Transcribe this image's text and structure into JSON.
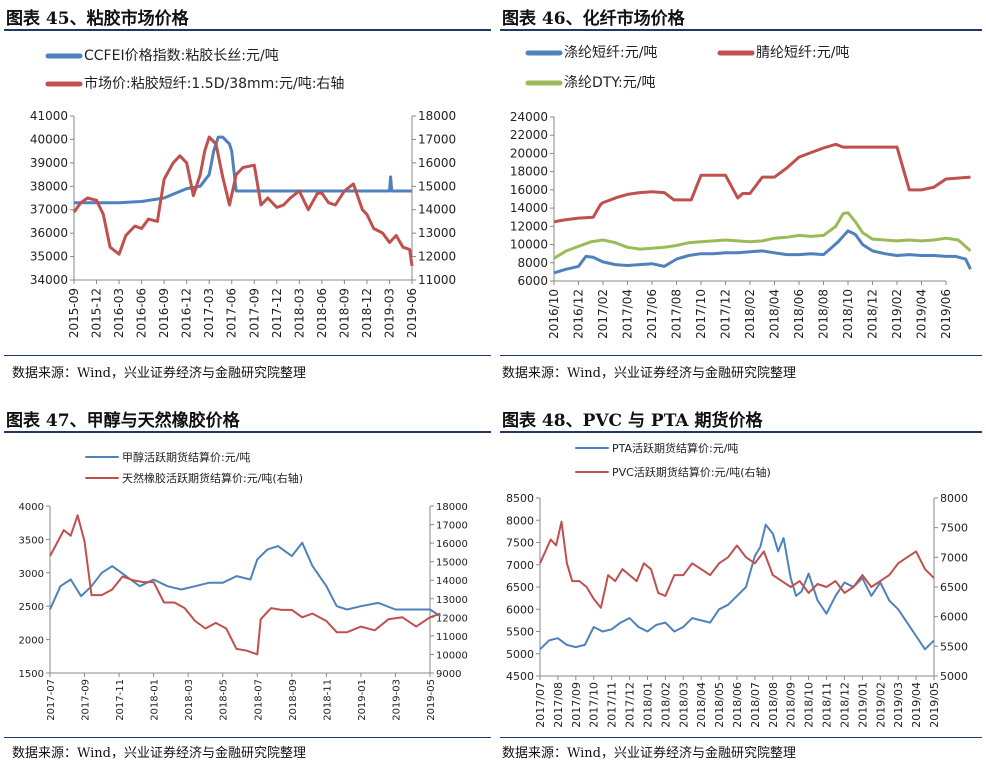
{
  "panels": [
    {
      "title": "图表 45、粘胶市场价格",
      "source": "数据来源：Wind，兴业证券经济与金融研究院整理"
    },
    {
      "title": "图表 46、化纤市场价格",
      "source": "数据来源：Wind，兴业证券经济与金融研究院整理"
    },
    {
      "title": "图表 47、甲醇与天然橡胶价格",
      "source": "数据来源：Wind，兴业证券经济与金融研究院整理"
    },
    {
      "title": "图表 48、PVC 与 PTA 期货价格",
      "source": "数据来源：Wind，兴业证券经济与金融研究院整理"
    }
  ],
  "chart_data": [
    {
      "type": "line",
      "legend_position": "top",
      "grid": false,
      "x_labels": [
        "2015-09",
        "2015-12",
        "2016-03",
        "2016-06",
        "2016-09",
        "2016-12",
        "2017-03",
        "2017-06",
        "2017-09",
        "2017-12",
        "2018-03",
        "2018-06",
        "2018-09",
        "2018-12",
        "2019-03",
        "2019-06"
      ],
      "ylim_left": [
        34000,
        41000
      ],
      "yticks_left": [
        34000,
        35000,
        36000,
        37000,
        38000,
        39000,
        40000,
        41000
      ],
      "ylim_right": [
        11000,
        18000
      ],
      "yticks_right": [
        11000,
        12000,
        13000,
        14000,
        15000,
        16000,
        17000,
        18000
      ],
      "series": [
        {
          "name": "CCFEI价格指数:粘胶长丝:元/吨",
          "color": "#4f81bd",
          "axis": "left",
          "x": [
            0,
            0.5,
            1,
            2,
            3,
            4,
            4.5,
            5,
            5.3,
            5.6,
            6,
            6.2,
            6.4,
            6.6,
            6.9,
            7.0,
            7.2,
            7.4,
            8,
            9,
            10,
            11,
            12,
            13,
            14.0,
            14.05,
            14.1,
            14.3,
            15
          ],
          "y": [
            37300,
            37300,
            37300,
            37300,
            37350,
            37500,
            37700,
            37900,
            37950,
            38000,
            38500,
            39500,
            40100,
            40100,
            39800,
            39500,
            37800,
            37800,
            37800,
            37800,
            37800,
            37800,
            37800,
            37800,
            37800,
            38400,
            37800,
            37800,
            37800
          ]
        },
        {
          "name": "市场价:粘胶短纤:1.5D/38mm:元/吨:右轴",
          "color": "#c0504d",
          "axis": "right",
          "x": [
            0,
            0.3,
            0.6,
            1,
            1.3,
            1.6,
            2,
            2.3,
            2.7,
            3,
            3.3,
            3.7,
            4,
            4.4,
            4.7,
            5,
            5.3,
            5.6,
            5.8,
            6,
            6.3,
            6.6,
            6.9,
            7.2,
            7.5,
            8,
            8.3,
            8.6,
            9,
            9.3,
            9.6,
            10,
            10.4,
            10.8,
            11,
            11.3,
            11.6,
            12,
            12.4,
            12.8,
            13,
            13.3,
            13.7,
            14,
            14.3,
            14.6,
            14.9,
            15
          ],
          "y": [
            13900,
            14300,
            14500,
            14400,
            13800,
            12400,
            12100,
            12900,
            13300,
            13200,
            13600,
            13500,
            15300,
            16000,
            16300,
            16000,
            14600,
            15500,
            16500,
            17100,
            16800,
            15400,
            14200,
            15500,
            15800,
            15900,
            14200,
            14500,
            14100,
            14200,
            14500,
            14800,
            14000,
            14700,
            14700,
            14300,
            14200,
            14800,
            15100,
            14000,
            13800,
            13200,
            13000,
            12600,
            12900,
            12400,
            12300,
            11600
          ]
        }
      ]
    },
    {
      "type": "line",
      "legend_position": "top",
      "grid": false,
      "x_labels": [
        "2016/10",
        "2016/12",
        "2017/02",
        "2017/04",
        "2017/06",
        "2017/08",
        "2017/10",
        "2017/12",
        "2018/02",
        "2018/04",
        "2018/06",
        "2018/08",
        "2018/10",
        "2018/12",
        "2019/02",
        "2019/04",
        "2019/06"
      ],
      "ylim": [
        6000,
        24000
      ],
      "yticks": [
        6000,
        8000,
        10000,
        12000,
        14000,
        16000,
        18000,
        20000,
        22000,
        24000
      ],
      "series": [
        {
          "name": "涤纶短纤:元/吨",
          "color": "#4f81bd",
          "x": [
            0,
            0.5,
            1,
            1.3,
            1.6,
            2,
            2.5,
            3,
            3.5,
            4,
            4.5,
            5,
            5.5,
            6,
            6.5,
            7,
            7.5,
            8,
            8.5,
            9,
            9.5,
            10,
            10.5,
            11,
            11.3,
            11.6,
            12,
            12.3,
            12.6,
            13,
            13.5,
            14,
            14.5,
            15,
            15.5,
            16,
            16.4,
            16.8,
            17
          ],
          "y": [
            6900,
            7300,
            7600,
            8700,
            8600,
            8100,
            7800,
            7700,
            7800,
            7900,
            7600,
            8400,
            8800,
            9000,
            9000,
            9100,
            9100,
            9200,
            9300,
            9100,
            8900,
            8900,
            9000,
            8900,
            9600,
            10300,
            11500,
            11100,
            10000,
            9300,
            9000,
            8800,
            8900,
            8800,
            8800,
            8700,
            8700,
            8400,
            7300
          ]
        },
        {
          "name": "腈纶短纤:元/吨",
          "color": "#c0504d",
          "x": [
            0,
            0.4,
            1,
            1.6,
            1.9,
            2,
            2.6,
            3,
            3.5,
            4,
            4.5,
            4.9,
            5.1,
            5.6,
            6,
            6.5,
            7,
            7.5,
            7.7,
            8,
            8.5,
            9,
            9.5,
            10,
            10.5,
            11,
            11.5,
            11.8,
            12,
            12.5,
            13,
            13.5,
            14,
            14.5,
            15,
            15.5,
            16,
            17
          ],
          "y": [
            12500,
            12700,
            12900,
            13000,
            14400,
            14600,
            15200,
            15500,
            15700,
            15800,
            15700,
            14900,
            14900,
            14900,
            17600,
            17600,
            17600,
            15100,
            15600,
            15600,
            17400,
            17400,
            18400,
            19600,
            20100,
            20600,
            21000,
            20700,
            20700,
            20700,
            20700,
            20700,
            20700,
            16000,
            16000,
            16300,
            17200,
            17400
          ]
        },
        {
          "name": "涤纶DTY:元/吨",
          "color": "#9bbb59",
          "x": [
            0,
            0.5,
            1,
            1.5,
            2,
            2.5,
            3,
            3.5,
            4,
            4.5,
            5,
            5.5,
            6,
            6.5,
            7,
            7.5,
            8,
            8.5,
            9,
            9.5,
            10,
            10.5,
            11,
            11.5,
            11.8,
            12,
            12.3,
            12.6,
            13,
            13.5,
            14,
            14.5,
            15,
            15.5,
            16,
            16.5,
            17
          ],
          "y": [
            8500,
            9300,
            9800,
            10300,
            10500,
            10200,
            9700,
            9500,
            9600,
            9700,
            9900,
            10200,
            10300,
            10400,
            10500,
            10400,
            10300,
            10400,
            10700,
            10800,
            11000,
            10900,
            11000,
            12000,
            13400,
            13500,
            12500,
            11300,
            10600,
            10500,
            10400,
            10500,
            10400,
            10500,
            10700,
            10500,
            9300
          ]
        }
      ]
    },
    {
      "type": "line",
      "legend_position": "top",
      "grid": false,
      "x_labels": [
        "2017-07",
        "2017-09",
        "2017-11",
        "2018-01",
        "2018-03",
        "2018-05",
        "2018-07",
        "2018-09",
        "2018-11",
        "2019-01",
        "2019-03",
        "2019-05"
      ],
      "ylim_left": [
        1500,
        4000
      ],
      "yticks_left": [
        1500,
        2000,
        2500,
        3000,
        3500,
        4000
      ],
      "ylim_right": [
        9000,
        18000
      ],
      "yticks_right": [
        9000,
        10000,
        11000,
        12000,
        13000,
        14000,
        15000,
        16000,
        17000,
        18000
      ],
      "series": [
        {
          "name": "甲醇活跃期货结算价:元/吨",
          "color": "#4f81bd",
          "axis": "left",
          "x": [
            0,
            0.3,
            0.6,
            0.9,
            1.2,
            1.5,
            1.8,
            2.2,
            2.6,
            3,
            3.4,
            3.8,
            4.2,
            4.6,
            5,
            5.4,
            5.8,
            6,
            6.3,
            6.6,
            7,
            7.3,
            7.6,
            8,
            8.3,
            8.6,
            9,
            9.5,
            10,
            10.5,
            11,
            11.3
          ],
          "y": [
            2450,
            2800,
            2900,
            2650,
            2800,
            3000,
            3100,
            2950,
            2800,
            2900,
            2800,
            2750,
            2800,
            2850,
            2850,
            2950,
            2900,
            3200,
            3350,
            3400,
            3250,
            3450,
            3100,
            2800,
            2500,
            2450,
            2500,
            2550,
            2450,
            2450,
            2450,
            2350
          ]
        },
        {
          "name": "天然橡胶活跃期货结算价:元/吨(右轴)",
          "color": "#c0504d",
          "axis": "right",
          "x": [
            0,
            0.2,
            0.4,
            0.6,
            0.8,
            1.0,
            1.2,
            1.5,
            1.8,
            2.1,
            2.4,
            2.7,
            3.0,
            3.3,
            3.6,
            3.9,
            4.2,
            4.5,
            4.8,
            5.1,
            5.4,
            5.7,
            6.0,
            6.1,
            6.4,
            6.7,
            7.0,
            7.3,
            7.6,
            8,
            8.3,
            8.6,
            9,
            9.4,
            9.8,
            10.2,
            10.6,
            11,
            11.3
          ],
          "y": [
            15300,
            16000,
            16700,
            16400,
            17500,
            16100,
            13200,
            13200,
            13500,
            14200,
            14000,
            13900,
            13900,
            12800,
            12800,
            12500,
            11800,
            11400,
            11700,
            11400,
            10300,
            10200,
            10000,
            11900,
            12500,
            12400,
            12400,
            12000,
            12200,
            11800,
            11200,
            11200,
            11500,
            11300,
            11900,
            12000,
            11500,
            12000,
            12200
          ]
        }
      ]
    },
    {
      "type": "line",
      "legend_position": "top",
      "grid": false,
      "x_labels": [
        "2017/07",
        "2017/08",
        "2017/09",
        "2017/10",
        "2017/11",
        "2017/12",
        "2018/01",
        "2018/02",
        "2018/03",
        "2018/04",
        "2018/05",
        "2018/06",
        "2018/07",
        "2018/08",
        "2018/09",
        "2018/10",
        "2018/11",
        "2018/12",
        "2019/01",
        "2019/02",
        "2019/03",
        "2019/04",
        "2019/05"
      ],
      "ylim_left": [
        4500,
        8500
      ],
      "yticks_left": [
        4500,
        5000,
        5500,
        6000,
        6500,
        7000,
        7500,
        8000,
        8500
      ],
      "ylim_right": [
        5000,
        8000
      ],
      "yticks_right": [
        5000,
        5500,
        6000,
        6500,
        7000,
        7500,
        8000
      ],
      "series": [
        {
          "name": "PTA活跃期货结算价:元/吨",
          "color": "#4f81bd",
          "axis": "left",
          "x": [
            0,
            0.5,
            1,
            1.5,
            2,
            2.5,
            3,
            3.5,
            4,
            4.5,
            5,
            5.5,
            6,
            6.5,
            7,
            7.5,
            8,
            8.5,
            9,
            9.5,
            10,
            10.5,
            11,
            11.5,
            12,
            12.3,
            12.6,
            13,
            13.3,
            13.6,
            14,
            14.3,
            14.6,
            15,
            15.5,
            16,
            16.5,
            17,
            17.5,
            18,
            18.5,
            19,
            19.5,
            20,
            20.5,
            21,
            21.5,
            22
          ],
          "y": [
            5100,
            5300,
            5350,
            5200,
            5150,
            5200,
            5600,
            5500,
            5550,
            5700,
            5800,
            5600,
            5500,
            5650,
            5700,
            5500,
            5600,
            5800,
            5750,
            5700,
            6000,
            6100,
            6300,
            6500,
            7200,
            7400,
            7900,
            7700,
            7300,
            7600,
            6700,
            6300,
            6400,
            6800,
            6200,
            5900,
            6300,
            6600,
            6500,
            6700,
            6300,
            6600,
            6200,
            6000,
            5700,
            5400,
            5100,
            5300
          ]
        },
        {
          "name": "PVC活跃期货结算价:元/吨(右轴)",
          "color": "#c0504d",
          "axis": "right",
          "x": [
            0,
            0.3,
            0.6,
            0.9,
            1.2,
            1.5,
            1.8,
            2.2,
            2.6,
            3,
            3.4,
            3.8,
            4.2,
            4.6,
            5,
            5.4,
            5.8,
            6.2,
            6.6,
            7,
            7.5,
            8,
            8.5,
            9,
            9.5,
            10,
            10.5,
            11,
            11.5,
            12,
            12.5,
            13,
            13.5,
            14,
            14.5,
            15,
            15.5,
            16,
            16.5,
            17,
            17.5,
            18,
            18.5,
            19,
            19.5,
            20,
            20.5,
            21,
            21.5,
            22
          ],
          "y": [
            6900,
            7100,
            7300,
            7200,
            7600,
            6900,
            6600,
            6600,
            6500,
            6300,
            6150,
            6700,
            6600,
            6800,
            6700,
            6600,
            6900,
            6800,
            6400,
            6350,
            6700,
            6700,
            6900,
            6800,
            6700,
            6900,
            7000,
            7200,
            7000,
            6900,
            7100,
            6700,
            6600,
            6500,
            6600,
            6400,
            6550,
            6500,
            6600,
            6400,
            6500,
            6700,
            6500,
            6600,
            6700,
            6900,
            7000,
            7100,
            6800,
            6650
          ]
        }
      ]
    }
  ]
}
